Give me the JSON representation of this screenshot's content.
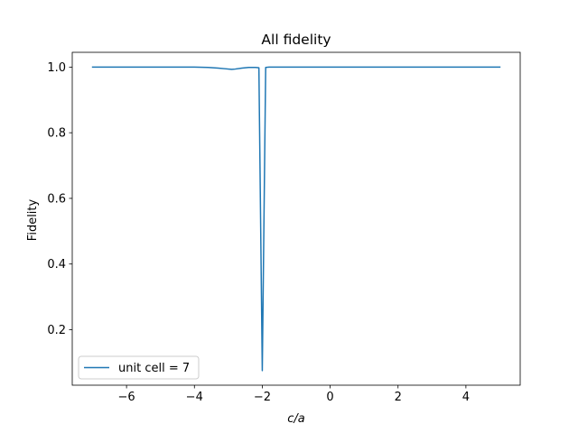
{
  "chart_data": {
    "type": "line",
    "title": "All fidelity",
    "xlabel": "c/a",
    "ylabel": "Fidelity",
    "xlim": [
      -7.6,
      5.6
    ],
    "ylim": [
      0.0308,
      1.045
    ],
    "xticks": [
      -6,
      -4,
      -2,
      0,
      2,
      4
    ],
    "xtick_labels": [
      "−6",
      "−4",
      "−2",
      "0",
      "2",
      "4"
    ],
    "yticks": [
      0.2,
      0.4,
      0.6,
      0.8,
      1.0
    ],
    "ytick_labels": [
      "0.2",
      "0.4",
      "0.6",
      "0.8",
      "1.0"
    ],
    "grid": false,
    "legend_position": "lower-left",
    "colors": {
      "series": "#1f77b4"
    },
    "series": [
      {
        "name": "unit cell = 7",
        "x": [
          -7.0,
          -6.0,
          -5.0,
          -4.0,
          -3.6,
          -3.3,
          -3.1,
          -2.9,
          -2.8,
          -2.6,
          -2.4,
          -2.2,
          -2.1,
          -2.0,
          -1.9,
          -1.8,
          -1.0,
          0.0,
          1.0,
          2.0,
          3.0,
          4.0,
          5.0
        ],
        "y": [
          1.0,
          1.0,
          1.0,
          1.0,
          0.999,
          0.997,
          0.995,
          0.993,
          0.994,
          0.997,
          0.999,
          0.999,
          0.998,
          0.075,
          0.999,
          1.0,
          1.0,
          1.0,
          1.0,
          1.0,
          1.0,
          1.0,
          1.0
        ]
      }
    ]
  }
}
